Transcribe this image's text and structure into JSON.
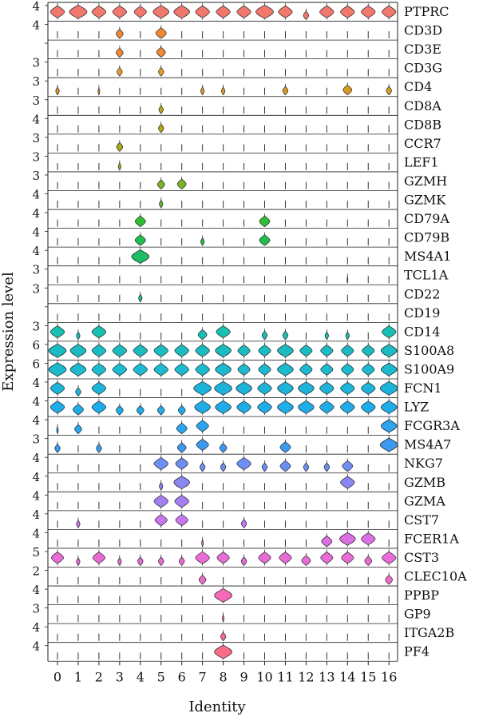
{
  "chart_data": {
    "type": "violin",
    "xlabel": "Identity",
    "ylabel": "Expression level",
    "categories": [
      "0",
      "1",
      "2",
      "3",
      "4",
      "5",
      "6",
      "7",
      "8",
      "9",
      "10",
      "11",
      "12",
      "13",
      "14",
      "15",
      "16"
    ],
    "genes": [
      {
        "name": "PTPRC",
        "max_label": "4",
        "color": "#f0786c",
        "widths": [
          0.8,
          1,
          0.8,
          0.8,
          0.7,
          0.9,
          0.9,
          0.8,
          0.8,
          0.8,
          1,
          0.8,
          0.3,
          0.8,
          0.8,
          0.8,
          0.8
        ]
      },
      {
        "name": "CD3D",
        "max_label": "4",
        "color": "#ee8a35",
        "widths": [
          0,
          0,
          0,
          0.4,
          0,
          0.6,
          0,
          0,
          0,
          0,
          0,
          0,
          0,
          0,
          0,
          0,
          0
        ]
      },
      {
        "name": "CD3E",
        "max_label": "",
        "color": "#ee8a35",
        "widths": [
          0,
          0,
          0,
          0.4,
          0,
          0.5,
          0,
          0,
          0,
          0,
          0,
          0,
          0,
          0,
          0,
          0,
          0
        ]
      },
      {
        "name": "CD3G",
        "max_label": "3",
        "color": "#e89a2c",
        "widths": [
          0,
          0,
          0,
          0.3,
          0,
          0.3,
          0,
          0,
          0,
          0,
          0,
          0,
          0,
          0,
          0,
          0,
          0
        ]
      },
      {
        "name": "CD4",
        "max_label": "3",
        "color": "#d99b1f",
        "widths": [
          0.2,
          0,
          0.1,
          0,
          0,
          0,
          0,
          0.2,
          0.2,
          0,
          0,
          0.3,
          0,
          0,
          0.5,
          0,
          0.3
        ]
      },
      {
        "name": "CD8A",
        "max_label": "3",
        "color": "#bca51c",
        "widths": [
          0,
          0,
          0,
          0,
          0,
          0.25,
          0,
          0,
          0,
          0,
          0,
          0,
          0,
          0,
          0,
          0,
          0
        ]
      },
      {
        "name": "CD8B",
        "max_label": "4",
        "color": "#b3a819",
        "widths": [
          0,
          0,
          0,
          0,
          0,
          0.3,
          0,
          0,
          0,
          0,
          0,
          0,
          0,
          0,
          0,
          0,
          0
        ]
      },
      {
        "name": "CCR7",
        "max_label": "3",
        "color": "#a5ab1c",
        "widths": [
          0,
          0,
          0,
          0.35,
          0,
          0,
          0,
          0,
          0,
          0,
          0,
          0,
          0,
          0,
          0,
          0,
          0
        ]
      },
      {
        "name": "LEF1",
        "max_label": "3",
        "color": "#94ae1e",
        "widths": [
          0,
          0,
          0,
          0.15,
          0,
          0,
          0,
          0,
          0,
          0,
          0,
          0,
          0,
          0,
          0,
          0,
          0
        ]
      },
      {
        "name": "GZMH",
        "max_label": "3",
        "color": "#7ab323",
        "widths": [
          0,
          0,
          0,
          0,
          0,
          0.4,
          0.5,
          0,
          0,
          0,
          0,
          0,
          0,
          0,
          0,
          0,
          0
        ]
      },
      {
        "name": "GZMK",
        "max_label": "4",
        "color": "#63b72a",
        "widths": [
          0,
          0,
          0,
          0,
          0,
          0.2,
          0,
          0,
          0,
          0,
          0,
          0,
          0,
          0,
          0,
          0,
          0
        ]
      },
      {
        "name": "CD79A",
        "max_label": "4",
        "color": "#2fbe32",
        "widths": [
          0,
          0,
          0,
          0,
          0.6,
          0,
          0,
          0,
          0,
          0,
          0.6,
          0,
          0,
          0,
          0,
          0,
          0
        ]
      },
      {
        "name": "CD79B",
        "max_label": "4",
        "color": "#22bd4c",
        "widths": [
          0,
          0,
          0,
          0,
          0.6,
          0,
          0,
          0.2,
          0,
          0,
          0.6,
          0,
          0,
          0,
          0,
          0,
          0
        ]
      },
      {
        "name": "MS4A1",
        "max_label": "4",
        "color": "#1ebd64",
        "widths": [
          0,
          0,
          0,
          0,
          1,
          0,
          0,
          0,
          0,
          0,
          0,
          0,
          0,
          0,
          0,
          0,
          0
        ]
      },
      {
        "name": "TCL1A",
        "max_label": "3",
        "color": "#1dbd7a",
        "widths": [
          0,
          0,
          0,
          0,
          0,
          0,
          0,
          0,
          0,
          0,
          0,
          0,
          0,
          0,
          0.05,
          0,
          0
        ]
      },
      {
        "name": "CD22",
        "max_label": "3",
        "color": "#1abd8e",
        "widths": [
          0,
          0,
          0,
          0,
          0.2,
          0,
          0,
          0,
          0,
          0,
          0,
          0,
          0,
          0,
          0,
          0,
          0
        ]
      },
      {
        "name": "CD19",
        "max_label": "",
        "color": "#17bfa0",
        "widths": [
          0,
          0,
          0,
          0,
          0,
          0,
          0,
          0,
          0,
          0,
          0,
          0,
          0,
          0,
          0,
          0,
          0
        ]
      },
      {
        "name": "CD14",
        "max_label": "3",
        "color": "#18bfb3",
        "widths": [
          0.8,
          0.2,
          0.8,
          0,
          0,
          0,
          0,
          0.5,
          0.8,
          0,
          0.3,
          0.3,
          0,
          0.2,
          0.2,
          0,
          0.8
        ]
      },
      {
        "name": "S100A8",
        "max_label": "6",
        "color": "#1abcc2",
        "widths": [
          1,
          0.9,
          0.8,
          0.8,
          0.8,
          0.8,
          0.8,
          0.8,
          0.9,
          0.7,
          0.7,
          0.9,
          0.7,
          0.7,
          0.7,
          0.7,
          0.9
        ]
      },
      {
        "name": "S100A9",
        "max_label": "6",
        "color": "#1cb9cf",
        "widths": [
          1,
          0.9,
          0.8,
          0.8,
          0.8,
          0.8,
          0.8,
          0.8,
          0.9,
          0.7,
          0.7,
          0.9,
          0.7,
          0.7,
          0.7,
          0.7,
          0.9
        ]
      },
      {
        "name": "FCN1",
        "max_label": "4",
        "color": "#1db4dc",
        "widths": [
          0.8,
          0.3,
          0.8,
          0,
          0,
          0,
          0,
          1,
          1,
          0.9,
          0.8,
          0.9,
          0.9,
          0.8,
          0.8,
          0.8,
          1
        ]
      },
      {
        "name": "LYZ",
        "max_label": "4",
        "color": "#1fadea",
        "widths": [
          0.8,
          0.6,
          0.8,
          0.4,
          0.4,
          0.4,
          0.4,
          0.9,
          0.9,
          0.8,
          0.8,
          0.9,
          0.9,
          0.8,
          0.8,
          0.8,
          0.9
        ]
      },
      {
        "name": "FCGR3A",
        "max_label": "4",
        "color": "#2aa5ee",
        "widths": [
          0.1,
          0.4,
          0,
          0,
          0,
          0,
          0.6,
          0.7,
          0,
          0,
          0,
          0,
          0,
          0,
          0,
          0,
          0.9
        ]
      },
      {
        "name": "MS4A7",
        "max_label": "3",
        "color": "#3b9af0",
        "widths": [
          0.3,
          0,
          0.3,
          0,
          0,
          0,
          0.5,
          0.7,
          0.4,
          0,
          0,
          0.6,
          0,
          0,
          0,
          0,
          1
        ]
      },
      {
        "name": "NKG7",
        "max_label": "4",
        "color": "#6e8ef2",
        "widths": [
          0,
          0,
          0,
          0,
          0,
          0.8,
          0.7,
          0.3,
          0.3,
          0.8,
          0.3,
          0.6,
          0.3,
          0.3,
          0.6,
          0,
          0
        ]
      },
      {
        "name": "GZMB",
        "max_label": "4",
        "color": "#8a86f2",
        "widths": [
          0,
          0,
          0,
          0,
          0,
          0.2,
          0.9,
          0,
          0,
          0,
          0,
          0,
          0,
          0,
          0.8,
          0,
          0
        ]
      },
      {
        "name": "GZMA",
        "max_label": "4",
        "color": "#a57ff2",
        "widths": [
          0,
          0,
          0,
          0,
          0,
          0.8,
          0.8,
          0,
          0,
          0,
          0,
          0,
          0,
          0,
          0,
          0,
          0
        ]
      },
      {
        "name": "CST7",
        "max_label": "4",
        "color": "#c677ee",
        "widths": [
          0,
          0.2,
          0,
          0,
          0,
          0.7,
          0.7,
          0,
          0,
          0.3,
          0,
          0,
          0,
          0,
          0,
          0,
          0
        ]
      },
      {
        "name": "FCER1A",
        "max_label": "4",
        "color": "#db6fe4",
        "widths": [
          0,
          0,
          0,
          0,
          0,
          0,
          0,
          0.1,
          0,
          0,
          0,
          0,
          0,
          0.6,
          0.9,
          0.8,
          0
        ]
      },
      {
        "name": "CST3",
        "max_label": "5",
        "color": "#e96bd6",
        "widths": [
          0.7,
          0.2,
          0.7,
          0.2,
          0.3,
          0.3,
          0.3,
          0.8,
          0.7,
          0.3,
          0.7,
          0.7,
          0.5,
          0.7,
          0.7,
          0.4,
          0.8
        ]
      },
      {
        "name": "CLEC10A",
        "max_label": "2",
        "color": "#ef6ac7",
        "widths": [
          0,
          0,
          0,
          0,
          0,
          0,
          0,
          0.4,
          0,
          0,
          0,
          0,
          0,
          0,
          0,
          0,
          0.4
        ]
      },
      {
        "name": "PPBP",
        "max_label": "4",
        "color": "#f56ab8",
        "widths": [
          0,
          0,
          0,
          0,
          0,
          0,
          0,
          0,
          1,
          0,
          0,
          0,
          0,
          0,
          0,
          0,
          0
        ]
      },
      {
        "name": "GP9",
        "max_label": "3",
        "color": "#f76aa6",
        "widths": [
          0,
          0,
          0,
          0,
          0,
          0,
          0,
          0,
          0.1,
          0,
          0,
          0,
          0,
          0,
          0,
          0,
          0
        ]
      },
      {
        "name": "ITGA2B",
        "max_label": "4",
        "color": "#f86a98",
        "widths": [
          0,
          0,
          0,
          0,
          0,
          0,
          0,
          0,
          0.3,
          0,
          0,
          0,
          0,
          0,
          0,
          0,
          0
        ]
      },
      {
        "name": "PF4",
        "max_label": "4",
        "color": "#f86d85",
        "widths": [
          0,
          0,
          0,
          0,
          0,
          0,
          0,
          0,
          1,
          0,
          0,
          0,
          0,
          0,
          0,
          0,
          0
        ]
      }
    ]
  }
}
